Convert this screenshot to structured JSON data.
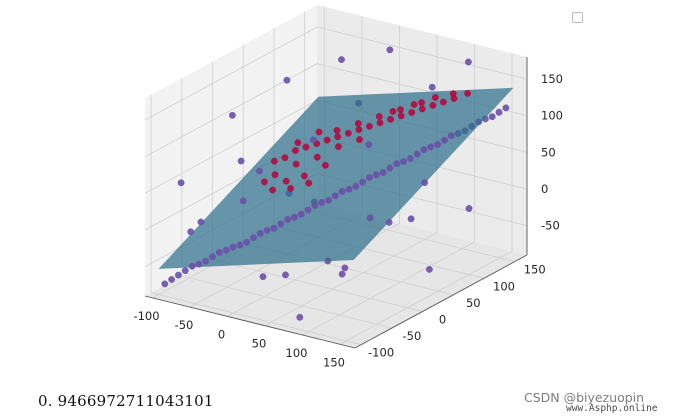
{
  "chart_data": {
    "type": "scatter",
    "title": "",
    "xlabel": "",
    "ylabel": "",
    "zlabel": "",
    "xlim": [
      -110,
      170
    ],
    "ylim": [
      -110,
      170
    ],
    "zlim": [
      -90,
      180
    ],
    "x_ticks": [
      -100,
      -50,
      0,
      50,
      100,
      150
    ],
    "y_ticks": [
      -100,
      -50,
      0,
      50,
      100,
      150
    ],
    "z_ticks": [
      -50,
      0,
      50,
      100,
      150
    ],
    "grid": true,
    "legend": "top-right, empty",
    "colors": {
      "class_a": "#b40a40",
      "class_b": "#6a50a8",
      "plane": "#2f6f8c"
    },
    "series": [
      {
        "values_xyz": [
          [
            -30,
            20,
            60
          ],
          [
            -20,
            25,
            70
          ],
          [
            -10,
            30,
            75
          ],
          [
            0,
            35,
            80
          ],
          [
            10,
            40,
            85
          ],
          [
            20,
            45,
            90
          ],
          [
            30,
            50,
            95
          ],
          [
            40,
            55,
            100
          ],
          [
            50,
            60,
            105
          ],
          [
            60,
            65,
            110
          ],
          [
            70,
            70,
            115
          ],
          [
            80,
            75,
            120
          ],
          [
            90,
            80,
            125
          ],
          [
            100,
            85,
            130
          ],
          [
            110,
            90,
            135
          ],
          [
            120,
            95,
            140
          ],
          [
            130,
            100,
            145
          ],
          [
            -40,
            15,
            55
          ],
          [
            -25,
            35,
            75
          ],
          [
            -5,
            45,
            90
          ],
          [
            15,
            50,
            95
          ],
          [
            35,
            60,
            105
          ],
          [
            55,
            70,
            115
          ],
          [
            75,
            80,
            125
          ],
          [
            95,
            90,
            135
          ],
          [
            -35,
            10,
            40
          ],
          [
            -15,
            20,
            55
          ],
          [
            5,
            30,
            65
          ],
          [
            25,
            40,
            80
          ],
          [
            45,
            50,
            90
          ],
          [
            -45,
            5,
            30
          ],
          [
            -20,
            10,
            35
          ],
          [
            0,
            15,
            45
          ],
          [
            20,
            25,
            60
          ],
          [
            140,
            110,
            150
          ],
          [
            125,
            105,
            148
          ],
          [
            105,
            100,
            140
          ],
          [
            85,
            90,
            130
          ],
          [
            65,
            80,
            120
          ],
          [
            -30,
            0,
            25
          ],
          [
            -10,
            5,
            30
          ],
          [
            10,
            10,
            40
          ]
        ]
      },
      {
        "values_xyz": [
          [
            -100,
            -90,
            -80
          ],
          [
            -90,
            -80,
            -70
          ],
          [
            -80,
            -70,
            -60
          ],
          [
            -70,
            -60,
            -55
          ],
          [
            -60,
            -50,
            -45
          ],
          [
            -50,
            -40,
            -40
          ],
          [
            -40,
            -30,
            -35
          ],
          [
            -30,
            -20,
            -25
          ],
          [
            -20,
            -10,
            -20
          ],
          [
            -10,
            0,
            -10
          ],
          [
            0,
            10,
            -5
          ],
          [
            10,
            20,
            5
          ],
          [
            20,
            30,
            10
          ],
          [
            30,
            40,
            20
          ],
          [
            40,
            50,
            25
          ],
          [
            50,
            60,
            35
          ],
          [
            60,
            70,
            40
          ],
          [
            70,
            80,
            50
          ],
          [
            80,
            90,
            55
          ],
          [
            90,
            100,
            65
          ],
          [
            100,
            110,
            70
          ],
          [
            110,
            120,
            80
          ],
          [
            120,
            130,
            85
          ],
          [
            130,
            140,
            95
          ],
          [
            140,
            150,
            100
          ],
          [
            150,
            160,
            110
          ],
          [
            -95,
            -85,
            -75
          ],
          [
            -85,
            -75,
            -65
          ],
          [
            -75,
            -65,
            -58
          ],
          [
            -65,
            -55,
            -50
          ],
          [
            -55,
            -45,
            -43
          ],
          [
            -45,
            -35,
            -38
          ],
          [
            -35,
            -25,
            -30
          ],
          [
            -25,
            -15,
            -22
          ],
          [
            -15,
            -5,
            -15
          ],
          [
            -5,
            5,
            -8
          ],
          [
            5,
            15,
            0
          ],
          [
            15,
            25,
            8
          ],
          [
            25,
            35,
            15
          ],
          [
            35,
            45,
            22
          ],
          [
            45,
            55,
            30
          ],
          [
            55,
            65,
            38
          ],
          [
            65,
            75,
            45
          ],
          [
            75,
            85,
            52
          ],
          [
            85,
            95,
            60
          ],
          [
            95,
            105,
            68
          ],
          [
            105,
            115,
            75
          ],
          [
            115,
            125,
            82
          ],
          [
            125,
            135,
            90
          ],
          [
            135,
            145,
            98
          ],
          [
            145,
            155,
            105
          ],
          [
            -90,
            -60,
            -20
          ],
          [
            -60,
            -80,
            10
          ],
          [
            -20,
            -60,
            40
          ],
          [
            20,
            -40,
            -60
          ],
          [
            60,
            -20,
            -40
          ],
          [
            100,
            0,
            20
          ],
          [
            140,
            40,
            60
          ],
          [
            -80,
            40,
            20
          ],
          [
            -40,
            80,
            -30
          ],
          [
            0,
            120,
            40
          ],
          [
            40,
            140,
            -60
          ],
          [
            80,
            -90,
            -80
          ],
          [
            120,
            -70,
            -20
          ],
          [
            150,
            -30,
            40
          ],
          [
            -100,
            20,
            100
          ],
          [
            -60,
            60,
            140
          ],
          [
            -20,
            100,
            160
          ],
          [
            20,
            130,
            170
          ],
          [
            60,
            150,
            120
          ],
          [
            100,
            160,
            160
          ],
          [
            150,
            100,
            0
          ],
          [
            -70,
            -100,
            70
          ],
          [
            10,
            -100,
            120
          ],
          [
            90,
            -80,
            160
          ],
          [
            130,
            60,
            -70
          ],
          [
            -30,
            140,
            80
          ],
          [
            -90,
            100,
            -40
          ],
          [
            50,
            20,
            -70
          ],
          [
            -10,
            -40,
            -70
          ]
        ]
      }
    ],
    "plane": {
      "equation": "z = 0.30*x + 0.45*y + 20"
    },
    "score_text": "0. 9466972711043101"
  },
  "watermark": {
    "line1": "CSDN @biyezuopin",
    "line2": "www.Asphp.online"
  }
}
